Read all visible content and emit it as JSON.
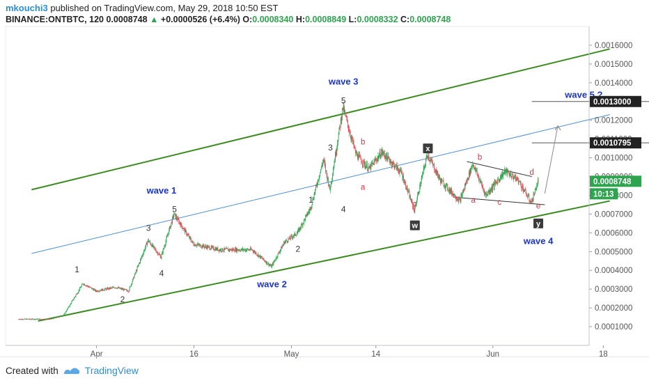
{
  "header": {
    "user": "mkouchi3",
    "published_text": "published on TradingView.com, May 29, 2018 10:50 EST",
    "symbol_line": "BINANCE:ONTBTC, 120",
    "last": "0.0008748",
    "change": "+0.0000526 (+6.4%)",
    "o_label": "O:",
    "o_value": "0.0008340",
    "h_label": "H:",
    "h_value": "0.0008849",
    "l_label": "L:",
    "l_value": "0.0008332",
    "c_label": "C:",
    "c_value": "0.0008748"
  },
  "footer": {
    "created_with": "Created with",
    "brand": "TradingView"
  },
  "colors": {
    "up": "#2ea44f",
    "down": "#e0505a",
    "channel": "#3a8a1f",
    "midline": "#4a8fd6",
    "wave_text": "#1a35c9",
    "sub_label": "#e03040"
  },
  "chart_data": {
    "type": "candlestick",
    "symbol": "BINANCE:ONTBTC",
    "interval": "120",
    "y_ticks": [
      "0.0016000",
      "0.0015000",
      "0.0014000",
      "0.0013000",
      "0.0012000",
      "0.0011000",
      "0.0010000",
      "0.0009000",
      "0.0008000",
      "0.0007000",
      "0.0006000",
      "0.0005000",
      "0.0004000",
      "0.0003000",
      "0.0002000",
      "0.0001000"
    ],
    "ylim": [
      0,
      0.0017
    ],
    "x_ticks": [
      "Apr",
      "16",
      "May",
      "14",
      "Jun",
      "18"
    ],
    "price_labels": [
      {
        "text": "0.0013000",
        "value": 0.0013,
        "style": "dark"
      },
      {
        "text": "0.0010795",
        "value": 0.0010795,
        "style": "dark"
      },
      {
        "text": "0.0008748",
        "value": 0.0008748,
        "style": "green"
      }
    ],
    "countdown": "10:13",
    "price_path": [
      [
        "03-20",
        0.00014
      ],
      [
        "03-25",
        0.00014
      ],
      [
        "03-27",
        0.00016
      ],
      [
        "03-30",
        0.00033
      ],
      [
        "04-01",
        0.00029
      ],
      [
        "04-04",
        0.00031
      ],
      [
        "04-06",
        0.00029
      ],
      [
        "04-09",
        0.00056
      ],
      [
        "04-11",
        0.00047
      ],
      [
        "04-13",
        0.0007
      ],
      [
        "04-16",
        0.00054
      ],
      [
        "04-20",
        0.00051
      ],
      [
        "04-25",
        0.00051
      ],
      [
        "04-28",
        0.00042
      ],
      [
        "04-30",
        0.00055
      ],
      [
        "05-02",
        0.0006
      ],
      [
        "05-04",
        0.00073
      ],
      [
        "05-06",
        0.00099
      ],
      [
        "05-07",
        0.00083
      ],
      [
        "05-09",
        0.00127
      ],
      [
        "05-11",
        0.00102
      ],
      [
        "05-13",
        0.00094
      ],
      [
        "05-15",
        0.00103
      ],
      [
        "05-18",
        0.00092
      ],
      [
        "05-20",
        0.00072
      ],
      [
        "05-22",
        0.00102
      ],
      [
        "05-24",
        0.00088
      ],
      [
        "05-27",
        0.00077
      ],
      [
        "05-29",
        0.00097
      ],
      [
        "05-31",
        0.0008
      ],
      [
        "06-03",
        0.00093
      ],
      [
        "06-05",
        0.00088
      ],
      [
        "06-07",
        0.00076
      ],
      [
        "06-08",
        0.00087
      ]
    ],
    "annotations": {
      "wave_labels": [
        {
          "text": "wave 1",
          "date": "04-11",
          "price": 0.00081
        },
        {
          "text": "wave 2",
          "date": "04-28",
          "price": 0.00031
        },
        {
          "text": "wave 3",
          "date": "05-09",
          "price": 0.00139
        },
        {
          "text": "wave 4",
          "date": "06-08",
          "price": 0.00054
        },
        {
          "text": "wave 5 ?",
          "date": "06-15",
          "price": 0.00132
        }
      ],
      "numbers": [
        {
          "text": "1",
          "date": "03-29",
          "price": 0.00039
        },
        {
          "text": "2",
          "date": "04-05",
          "price": 0.00023
        },
        {
          "text": "3",
          "date": "04-09",
          "price": 0.00061
        },
        {
          "text": "4",
          "date": "04-11",
          "price": 0.00037
        },
        {
          "text": "5",
          "date": "04-13",
          "price": 0.00071
        },
        {
          "text": "1",
          "date": "05-04",
          "price": 0.00076
        },
        {
          "text": "2",
          "date": "05-02",
          "price": 0.0005
        },
        {
          "text": "3",
          "date": "05-07",
          "price": 0.00104
        },
        {
          "text": "4",
          "date": "05-09",
          "price": 0.00071
        },
        {
          "text": "5",
          "date": "05-09",
          "price": 0.00129
        }
      ],
      "sub_labels": [
        {
          "text": "b",
          "date": "05-12",
          "price": 0.00107
        },
        {
          "text": "a",
          "date": "05-12",
          "price": 0.00083
        },
        {
          "text": "c",
          "date": "05-20",
          "price": 0.00074
        },
        {
          "text": "b",
          "date": "05-30",
          "price": 0.00099
        },
        {
          "text": "a",
          "date": "05-29",
          "price": 0.00076
        },
        {
          "text": "c",
          "date": "06-02",
          "price": 0.00075
        },
        {
          "text": "d",
          "date": "06-07",
          "price": 0.00091
        },
        {
          "text": "e",
          "date": "06-08",
          "price": 0.00073
        }
      ],
      "boxes": [
        {
          "text": "x",
          "date": "05-22",
          "price": 0.00105
        },
        {
          "text": "w",
          "date": "05-20",
          "price": 0.00064
        },
        {
          "text": "y",
          "date": "06-08",
          "price": 0.00065
        }
      ]
    }
  }
}
